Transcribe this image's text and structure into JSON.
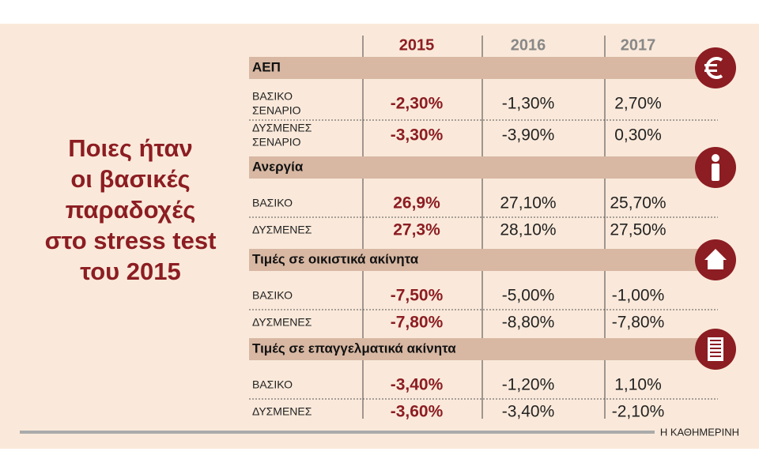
{
  "title_lines": [
    "Ποιες ήταν",
    "οι βασικές",
    "παραδοχές",
    "στο stress test",
    "του 2015"
  ],
  "table": {
    "columns": [
      "2015",
      "2016",
      "2017"
    ],
    "sections": [
      {
        "name": "ΑΕΠ",
        "rows": [
          {
            "label": [
              "ΒΑΣΙΚΟ",
              "ΣΕΝΑΡΙΟ"
            ],
            "values": [
              "-2,30%",
              "-1,30%",
              "2,70%"
            ]
          },
          {
            "label": [
              "ΔΥΣΜΕΝΕΣ",
              "ΣΕΝΑΡΙΟ"
            ],
            "values": [
              "-3,30%",
              "-3,90%",
              "0,30%"
            ]
          }
        ]
      },
      {
        "name": "Ανεργία",
        "rows": [
          {
            "label": [
              "ΒΑΣΙΚΟ"
            ],
            "values": [
              "26,9%",
              "27,10%",
              "25,70%"
            ]
          },
          {
            "label": [
              "ΔΥΣΜΕΝΕΣ"
            ],
            "values": [
              "27,3%",
              "28,10%",
              "27,50%"
            ]
          }
        ]
      },
      {
        "name": "Τιμές σε οικιστικά ακίνητα",
        "rows": [
          {
            "label": [
              "ΒΑΣΙΚΟ"
            ],
            "values": [
              "-7,50%",
              "-5,00%",
              "-1,00%"
            ]
          },
          {
            "label": [
              "ΔΥΣΜΕΝΕΣ"
            ],
            "values": [
              "-7,80%",
              "-8,80%",
              "-7,80%"
            ]
          }
        ]
      },
      {
        "name": "Τιμές σε επαγγελματικά ακίνητα",
        "rows": [
          {
            "label": [
              "ΒΑΣΙΚΟ"
            ],
            "values": [
              "-3,40%",
              "-1,20%",
              "1,10%"
            ]
          },
          {
            "label": [
              "ΔΥΣΜΕΝΕΣ"
            ],
            "values": [
              "-3,60%",
              "-3,40%",
              "-2,10%"
            ]
          }
        ]
      }
    ]
  },
  "footer": "Η ΚΑΘΗΜΕΡΙΝΗ"
}
